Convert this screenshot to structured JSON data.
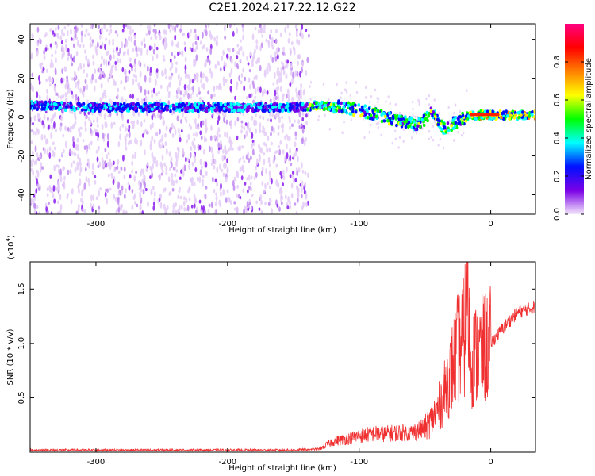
{
  "figure": {
    "title": "C2E1.2024.217.22.12.G22"
  },
  "chart_data": [
    {
      "type": "heatmap",
      "xlabel": "Height of straight line (km)",
      "ylabel": "Frequency (Hz)",
      "xlim": [
        -350,
        34
      ],
      "ylim": [
        -50,
        48
      ],
      "x_ticks": [
        -300,
        -200,
        -100,
        0
      ],
      "y_ticks": [
        -40,
        -20,
        0,
        20,
        40
      ],
      "colorbar": {
        "label": "Normalized spectral amplitude",
        "range": [
          0,
          1
        ],
        "ticks": [
          0.0,
          0.2,
          0.4,
          0.6,
          0.8
        ],
        "tick_labels": [
          "0.0",
          "0.2",
          "0.4",
          "0.6",
          "0.8"
        ],
        "colors": [
          "#f3e6fb",
          "#7a00e6",
          "#0010ff",
          "#00ffff",
          "#00ff00",
          "#ffff00",
          "#ff8000",
          "#ff0000",
          "#ff0080"
        ]
      },
      "trace": [
        {
          "x": -350,
          "y": 6
        },
        {
          "x": -300,
          "y": 5
        },
        {
          "x": -250,
          "y": 5
        },
        {
          "x": -200,
          "y": 5
        },
        {
          "x": -150,
          "y": 5
        },
        {
          "x": -130,
          "y": 6
        },
        {
          "x": -110,
          "y": 5
        },
        {
          "x": -90,
          "y": 2
        },
        {
          "x": -70,
          "y": -2
        },
        {
          "x": -55,
          "y": -4
        },
        {
          "x": -45,
          "y": 2
        },
        {
          "x": -35,
          "y": -6
        },
        {
          "x": -25,
          "y": -2
        },
        {
          "x": -15,
          "y": 1
        },
        {
          "x": 0,
          "y": 1
        },
        {
          "x": 20,
          "y": 1
        },
        {
          "x": 34,
          "y": 1
        }
      ],
      "noise_region_x": [
        -350,
        -138
      ],
      "grid": false
    },
    {
      "type": "line",
      "xlabel": "Height of straight line (km)",
      "ylabel": "SNR (10 * v/v)",
      "y_multiplier": "(x10^4)",
      "y_multiplier_base": "(x10",
      "y_multiplier_exp": "4",
      "y_multiplier_close": ")",
      "xlim": [
        -350,
        34
      ],
      "ylim": [
        0,
        1.75
      ],
      "x_ticks": [
        -300,
        -200,
        -100,
        0
      ],
      "y_ticks": [
        0.5,
        1.0,
        1.5
      ],
      "series": [
        {
          "color": "#f03030",
          "x": [
            -350,
            -300,
            -250,
            -200,
            -150,
            -130,
            -120,
            -110,
            -100,
            -90,
            -80,
            -70,
            -60,
            -50,
            -45,
            -40,
            -35,
            -30,
            -25,
            -20,
            -18,
            -15,
            -10,
            -5,
            0,
            10,
            20,
            34
          ],
          "y": [
            0.02,
            0.02,
            0.02,
            0.02,
            0.02,
            0.03,
            0.1,
            0.12,
            0.15,
            0.17,
            0.17,
            0.18,
            0.18,
            0.22,
            0.3,
            0.4,
            0.55,
            0.75,
            0.95,
            1.05,
            1.55,
            0.85,
            0.9,
            0.95,
            1.0,
            1.15,
            1.28,
            1.34
          ]
        }
      ],
      "grid": false
    }
  ]
}
